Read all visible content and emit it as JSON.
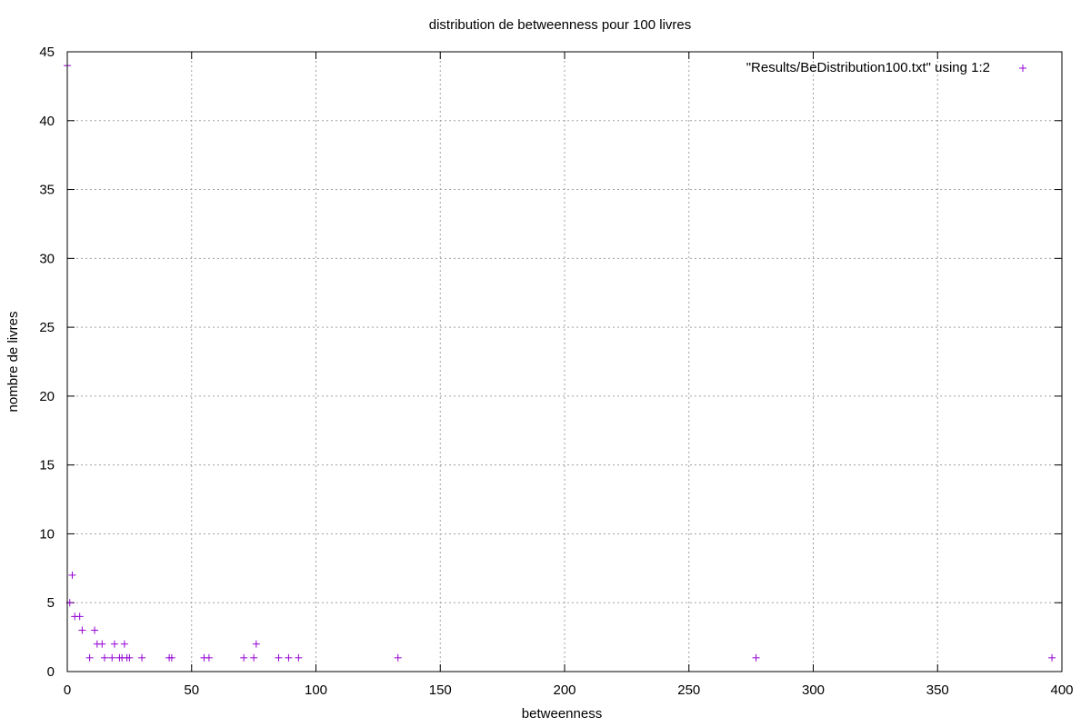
{
  "chart_data": {
    "type": "scatter",
    "title": "distribution de betweenness pour 100 livres",
    "xlabel": "betweenness",
    "ylabel": "nombre de livres",
    "xlim": [
      0,
      400
    ],
    "ylim": [
      0,
      45
    ],
    "xticks": [
      0,
      50,
      100,
      150,
      200,
      250,
      300,
      350,
      400
    ],
    "yticks": [
      0,
      5,
      10,
      15,
      20,
      25,
      30,
      35,
      40,
      45
    ],
    "grid": true,
    "legend_position": "top-right",
    "marker": "+",
    "series": [
      {
        "name": "\"Results/BeDistribution100.txt\" using 1:2",
        "color": "#9400d3",
        "points": [
          {
            "x": 0,
            "y": 44
          },
          {
            "x": 1,
            "y": 5
          },
          {
            "x": 2,
            "y": 7
          },
          {
            "x": 3,
            "y": 4
          },
          {
            "x": 5,
            "y": 4
          },
          {
            "x": 6,
            "y": 3
          },
          {
            "x": 9,
            "y": 1
          },
          {
            "x": 11,
            "y": 3
          },
          {
            "x": 12,
            "y": 2
          },
          {
            "x": 14,
            "y": 2
          },
          {
            "x": 15,
            "y": 1
          },
          {
            "x": 18,
            "y": 1
          },
          {
            "x": 19,
            "y": 2
          },
          {
            "x": 21,
            "y": 1
          },
          {
            "x": 22,
            "y": 1
          },
          {
            "x": 23,
            "y": 2
          },
          {
            "x": 24,
            "y": 1
          },
          {
            "x": 25,
            "y": 1
          },
          {
            "x": 30,
            "y": 1
          },
          {
            "x": 41,
            "y": 1
          },
          {
            "x": 42,
            "y": 1
          },
          {
            "x": 55,
            "y": 1
          },
          {
            "x": 57,
            "y": 1
          },
          {
            "x": 71,
            "y": 1
          },
          {
            "x": 75,
            "y": 1
          },
          {
            "x": 76,
            "y": 2
          },
          {
            "x": 85,
            "y": 1
          },
          {
            "x": 89,
            "y": 1
          },
          {
            "x": 93,
            "y": 1
          },
          {
            "x": 133,
            "y": 1
          },
          {
            "x": 277,
            "y": 1
          },
          {
            "x": 396,
            "y": 1
          }
        ]
      }
    ]
  }
}
